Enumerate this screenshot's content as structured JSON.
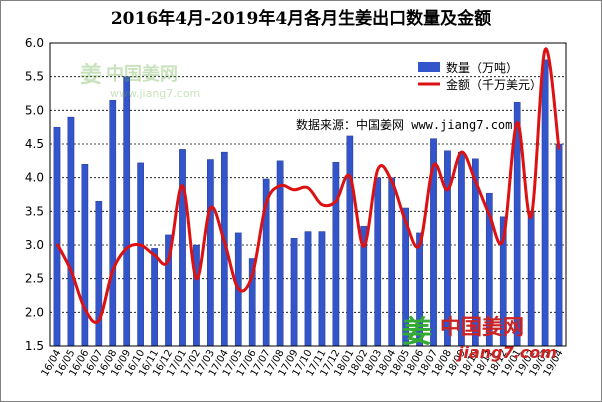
{
  "chart_data": {
    "type": "bar+line",
    "title": "2016年4月-2019年4月各月生姜出口数量及金额",
    "categories": [
      "16/04",
      "16/05",
      "16/06",
      "16/07",
      "16/08",
      "16/09",
      "16/10",
      "16/11",
      "16/12",
      "17/01",
      "17/02",
      "17/03",
      "17/04",
      "17/05",
      "17/06",
      "17/07",
      "17/08",
      "17/09",
      "17/10",
      "17/11",
      "17/12",
      "18/01",
      "18/02",
      "18/03",
      "18/04",
      "18/05",
      "18/06",
      "18/07",
      "18/08",
      "18/09",
      "18/10",
      "18/11",
      "18/12",
      "19/01",
      "19/02",
      "19/03",
      "19/04"
    ],
    "ylim": [
      1.5,
      6.0
    ],
    "yticks": [
      "1.5",
      "2.0",
      "2.5",
      "3.0",
      "3.5",
      "4.0",
      "4.5",
      "5.0",
      "5.5",
      "6.0"
    ],
    "grid": true,
    "legend_position": "top-right",
    "series": [
      {
        "name": "数量（万吨）",
        "kind": "bar",
        "color": "#3355CC",
        "values": [
          4.75,
          4.9,
          4.2,
          3.65,
          5.15,
          5.5,
          4.22,
          2.95,
          3.15,
          4.42,
          3.0,
          4.27,
          4.38,
          3.18,
          2.8,
          3.98,
          4.25,
          3.1,
          3.2,
          3.2,
          4.23,
          4.62,
          3.28,
          4.0,
          4.0,
          3.55,
          3.18,
          4.58,
          4.4,
          4.38,
          4.28,
          3.77,
          3.42,
          5.12,
          3.5,
          5.75,
          4.5
        ]
      },
      {
        "name": "金额（千万美元）",
        "kind": "line",
        "color": "#DD1111",
        "values": [
          3.02,
          2.62,
          2.05,
          1.88,
          2.62,
          2.95,
          3.0,
          2.85,
          2.78,
          3.88,
          2.5,
          3.55,
          3.05,
          2.35,
          2.55,
          3.62,
          3.88,
          3.82,
          3.85,
          3.6,
          3.65,
          4.02,
          2.98,
          4.12,
          3.95,
          3.35,
          3.0,
          4.18,
          3.82,
          4.38,
          3.95,
          3.45,
          3.08,
          4.82,
          3.42,
          5.9,
          4.42
        ]
      }
    ]
  },
  "source_note": "数据来源：中国姜网 www.jiang7.com",
  "watermark": {
    "top_cn": "中国姜网",
    "top_url": "www.jiang7.com",
    "bottom_cn": "中国姜网",
    "bottom_url": "jiang7.com"
  }
}
